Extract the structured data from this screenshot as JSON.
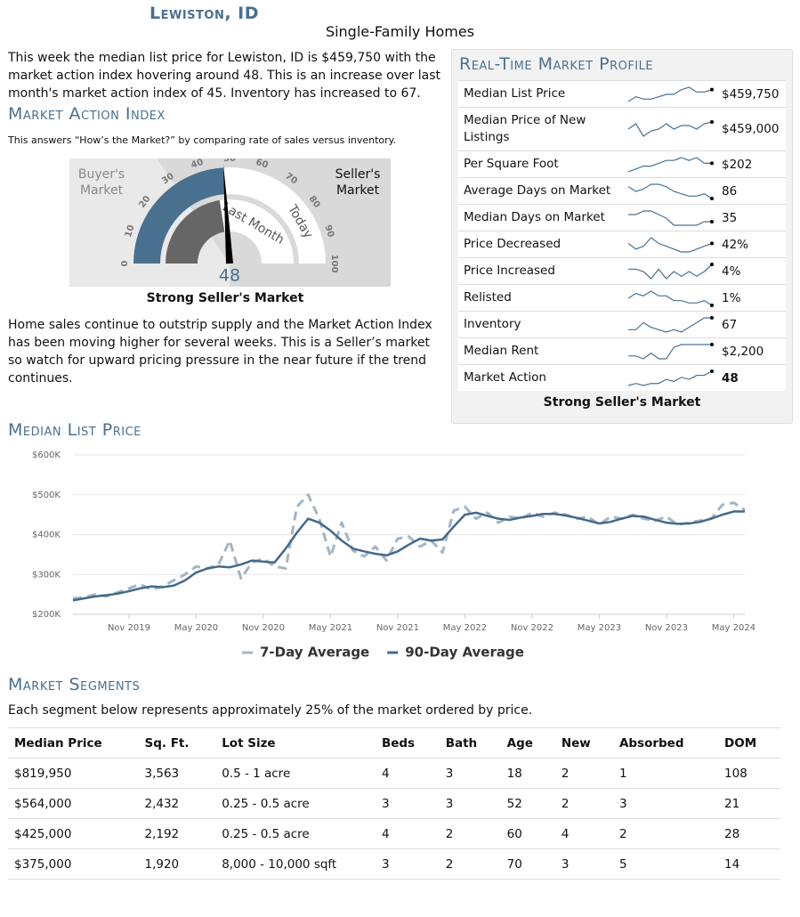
{
  "header": {
    "city": "Lewiston, ID",
    "subtitle": "Single-Family Homes"
  },
  "intro": "This week the median list price for Lewiston, ID is $459,750 with the market action index hovering around 48. This is an increase over last month's market action index of 45. Inventory has increased to 67.",
  "market_action": {
    "title": "Market Action Index",
    "description": "This answers “How’s the Market?” by comparing rate of sales versus inventory.",
    "gauge": {
      "buyers_label": "Buyer's Market",
      "sellers_label": "Seller's Market",
      "ticks": [
        0,
        10,
        20,
        30,
        40,
        50,
        60,
        70,
        80,
        90,
        100
      ],
      "last_month_label": "Last Month",
      "today_label": "Today",
      "value": 48,
      "last_month": 45
    },
    "status": "Strong Seller's Market",
    "commentary": "Home sales continue to outstrip supply and the Market Action Index has been moving higher for several weeks. This is a Seller’s market so watch for upward pricing pressure in the near future if the trend continues."
  },
  "profile": {
    "title": "Real-Time Market Profile",
    "rows": [
      {
        "label": "Median List Price",
        "value": "$459,750",
        "trend": [
          3,
          5,
          4,
          4,
          5,
          6,
          6,
          8,
          9,
          7,
          7,
          8
        ]
      },
      {
        "label": "Median Price of New Listings",
        "value": "$459,000",
        "trend": [
          6,
          9,
          2,
          5,
          6,
          9,
          6,
          8,
          8,
          6,
          9,
          10
        ]
      },
      {
        "label": "Per Square Foot",
        "value": "$202",
        "trend": [
          2,
          3,
          4,
          4,
          5,
          6,
          6,
          7,
          6,
          7,
          5,
          5
        ]
      },
      {
        "label": "Average Days on Market",
        "value": "86",
        "trend": [
          7,
          5,
          6,
          8,
          8,
          7,
          5,
          4,
          3,
          3,
          4,
          2
        ]
      },
      {
        "label": "Median Days on Market",
        "value": "35",
        "trend": [
          6,
          6,
          7,
          7,
          6,
          5,
          3,
          3,
          3,
          3,
          4,
          4
        ]
      },
      {
        "label": "Price Decreased",
        "value": "42%",
        "trend": [
          6,
          4,
          5,
          8,
          6,
          5,
          4,
          3,
          3,
          4,
          5,
          6
        ]
      },
      {
        "label": "Price Increased",
        "value": "4%",
        "trend": [
          7,
          7,
          6,
          3,
          7,
          3,
          6,
          4,
          6,
          4,
          6,
          9
        ]
      },
      {
        "label": "Relisted",
        "value": "1%",
        "trend": [
          5,
          7,
          6,
          8,
          6,
          6,
          4,
          4,
          3,
          3,
          4,
          2
        ]
      },
      {
        "label": "Inventory",
        "value": "67",
        "trend": [
          3,
          3,
          6,
          4,
          3,
          2,
          3,
          2,
          4,
          6,
          8,
          8
        ]
      },
      {
        "label": "Median Rent",
        "value": "$2,200",
        "trend": [
          4,
          4,
          3,
          5,
          3,
          3,
          7,
          8,
          8,
          8,
          8,
          8
        ]
      },
      {
        "label": "Market Action",
        "value": "48",
        "trend": [
          2,
          3,
          2,
          3,
          3,
          5,
          4,
          6,
          5,
          7,
          7,
          9
        ]
      }
    ],
    "status": "Strong Seller's Market"
  },
  "chart_data": {
    "type": "line",
    "title": "Median List Price",
    "x": [
      null,
      null,
      null,
      null,
      null,
      "Nov 2019",
      null,
      null,
      null,
      null,
      null,
      "May 2020",
      null,
      null,
      null,
      null,
      null,
      "Nov 2020",
      null,
      null,
      null,
      null,
      null,
      "May 2021",
      null,
      null,
      null,
      null,
      null,
      "Nov 2021",
      null,
      null,
      null,
      null,
      null,
      "May 2022",
      null,
      null,
      null,
      null,
      null,
      "Nov 2022",
      null,
      null,
      null,
      null,
      null,
      "May 2023",
      null,
      null,
      null,
      null,
      null,
      "Nov 2023",
      null,
      null,
      null,
      null,
      null,
      "May 2024",
      null
    ],
    "series": [
      {
        "name": "7-Day Average",
        "color": "#a3b5c4",
        "values": [
          240000,
          242000,
          250000,
          245000,
          255000,
          265000,
          275000,
          262000,
          270000,
          285000,
          300000,
          320000,
          315000,
          325000,
          385000,
          290000,
          330000,
          340000,
          320000,
          315000,
          470000,
          500000,
          440000,
          345000,
          430000,
          360000,
          345000,
          370000,
          335000,
          390000,
          395000,
          370000,
          385000,
          355000,
          460000,
          470000,
          440000,
          455000,
          430000,
          445000,
          440000,
          455000,
          445000,
          455000,
          450000,
          440000,
          445000,
          425000,
          445000,
          440000,
          450000,
          440000,
          435000,
          445000,
          425000,
          430000,
          435000,
          440000,
          475000,
          480000,
          462000
        ]
      },
      {
        "name": "90-Day Average",
        "color": "#44698a",
        "values": [
          235000,
          240000,
          245000,
          248000,
          252000,
          258000,
          265000,
          270000,
          268000,
          272000,
          285000,
          305000,
          315000,
          320000,
          318000,
          325000,
          335000,
          332000,
          330000,
          365000,
          405000,
          440000,
          430000,
          410000,
          385000,
          365000,
          358000,
          352000,
          348000,
          358000,
          375000,
          390000,
          385000,
          388000,
          420000,
          450000,
          455000,
          447000,
          440000,
          437000,
          443000,
          447000,
          452000,
          452000,
          448000,
          442000,
          435000,
          428000,
          432000,
          440000,
          447000,
          445000,
          437000,
          430000,
          427000,
          428000,
          432000,
          440000,
          450000,
          458000,
          458000
        ]
      }
    ],
    "ylim": [
      200000,
      600000
    ],
    "yticks": [
      {
        "value": 200000,
        "label": "$200K"
      },
      {
        "value": 300000,
        "label": "$300K"
      },
      {
        "value": 400000,
        "label": "$400K"
      },
      {
        "value": 500000,
        "label": "$500K"
      },
      {
        "value": 600000,
        "label": "$600K"
      }
    ],
    "grid": true,
    "legend": "bottom"
  },
  "segments": {
    "title": "Market Segments",
    "description": "Each segment below represents approximately 25% of the market ordered by price.",
    "columns": [
      "Median Price",
      "Sq. Ft.",
      "Lot Size",
      "Beds",
      "Bath",
      "Age",
      "New",
      "Absorbed",
      "DOM"
    ],
    "rows": [
      [
        "$819,950",
        "3,563",
        "0.5 - 1 acre",
        "4",
        "3",
        "18",
        "2",
        "1",
        "108"
      ],
      [
        "$564,000",
        "2,432",
        "0.25 - 0.5 acre",
        "3",
        "3",
        "52",
        "2",
        "3",
        "21"
      ],
      [
        "$425,000",
        "2,192",
        "0.25 - 0.5 acre",
        "4",
        "2",
        "60",
        "4",
        "2",
        "28"
      ],
      [
        "$375,000",
        "1,920",
        "8,000 - 10,000 sqft",
        "3",
        "2",
        "70",
        "3",
        "5",
        "14"
      ]
    ]
  }
}
